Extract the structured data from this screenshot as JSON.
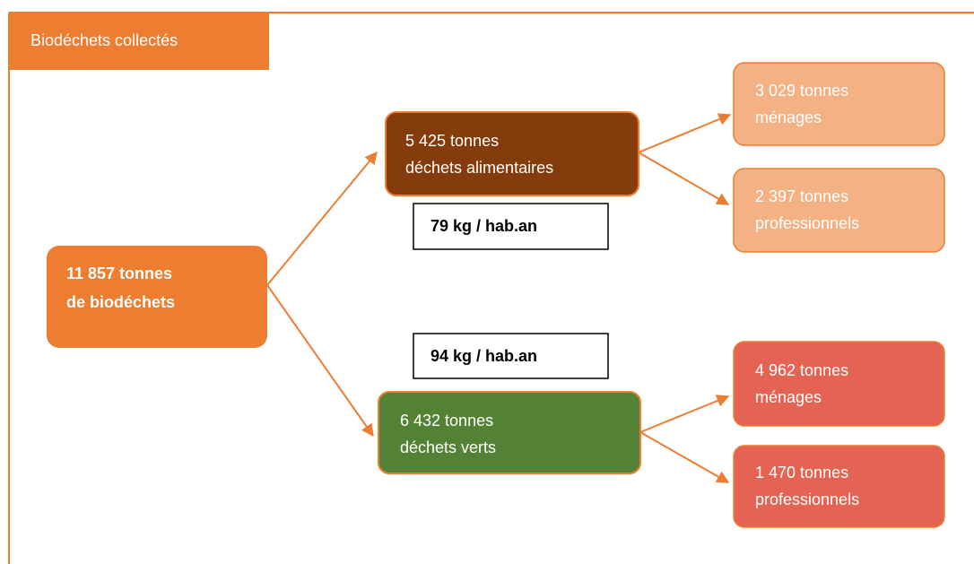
{
  "header": {
    "title": "Biodéchets collectés"
  },
  "nodes": [
    {
      "lines": [
        "11 857 tonnes",
        "de biodéchets"
      ]
    },
    {
      "lines": [
        "5 425 tonnes",
        "déchets alimentaires"
      ]
    },
    {
      "lines": [
        "6 432 tonnes",
        "déchets verts"
      ]
    },
    {
      "lines": [
        "3 029 tonnes",
        "ménages"
      ]
    },
    {
      "lines": [
        "2 397 tonnes",
        "professionnels"
      ]
    },
    {
      "lines": [
        "4 962 tonnes",
        "ménages"
      ]
    },
    {
      "lines": [
        "1 470 tonnes",
        "professionnels"
      ]
    }
  ],
  "ratios": [
    "79 kg / hab.an",
    "94 kg / hab.an"
  ]
}
